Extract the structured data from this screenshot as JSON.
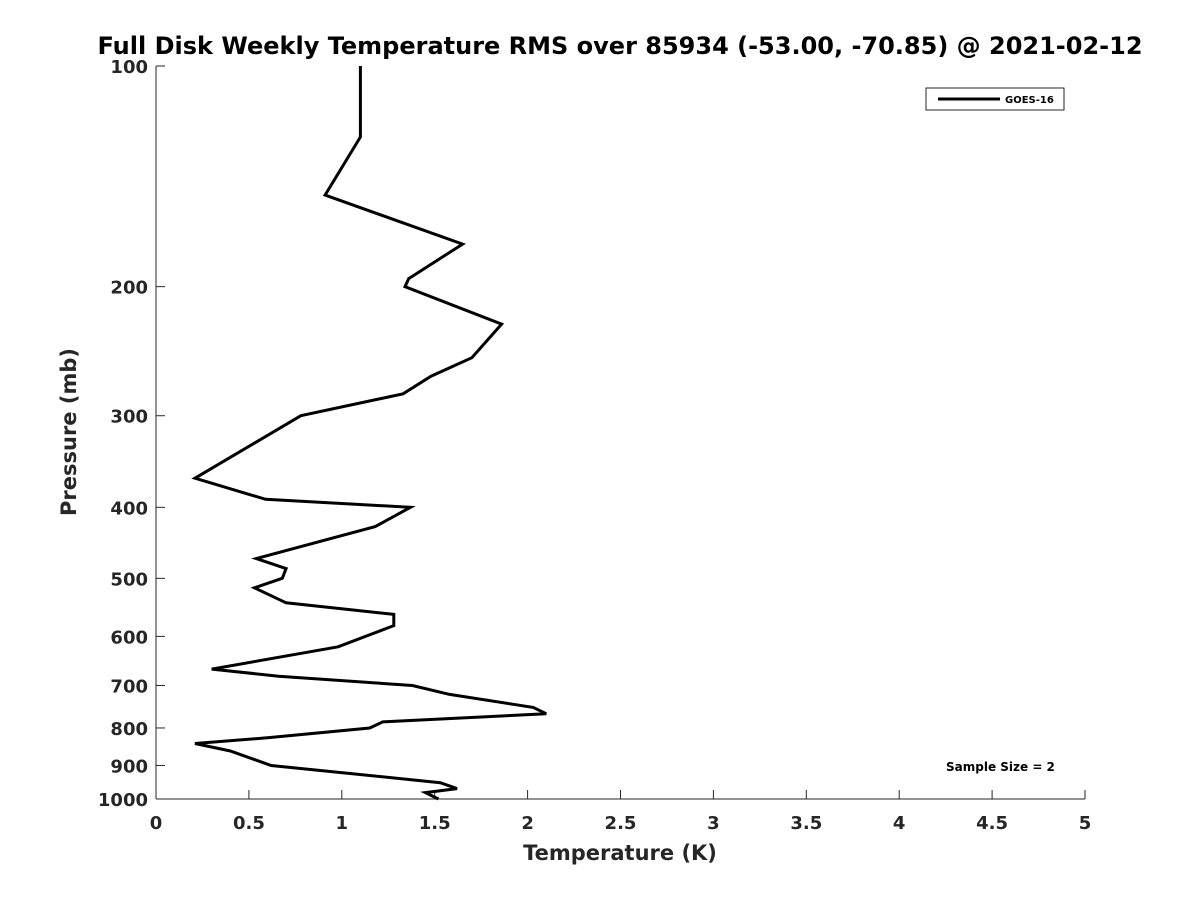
{
  "chart_data": {
    "type": "line",
    "title": "Full Disk Weekly Temperature RMS over 85934 (-53.00, -70.85) @ 2021-02-12",
    "xlabel": "Temperature (K)",
    "ylabel": "Pressure (mb)",
    "xlim": [
      0,
      5
    ],
    "ylim": [
      1000,
      100
    ],
    "y_scale": "log",
    "y_reversed": true,
    "grid": false,
    "x_ticks": [
      "0",
      "0.5",
      "1",
      "1.5",
      "2",
      "2.5",
      "3",
      "3.5",
      "4",
      "4.5",
      "5"
    ],
    "y_ticks": [
      "100",
      "200",
      "300",
      "400",
      "500",
      "600",
      "700",
      "800",
      "900",
      "1000"
    ],
    "legend_position": "top-right",
    "annotation": "Sample Size = 2",
    "series": [
      {
        "name": "GOES-16",
        "color": "#000000",
        "points": [
          [
            1.1,
            100
          ],
          [
            1.1,
            125
          ],
          [
            0.91,
            150
          ],
          [
            1.65,
            175
          ],
          [
            1.36,
            195
          ],
          [
            1.34,
            200
          ],
          [
            1.86,
            225
          ],
          [
            1.7,
            250
          ],
          [
            1.48,
            265
          ],
          [
            1.33,
            280
          ],
          [
            0.78,
            300
          ],
          [
            0.21,
            365
          ],
          [
            0.59,
            390
          ],
          [
            1.37,
            400
          ],
          [
            1.18,
            425
          ],
          [
            0.54,
            470
          ],
          [
            0.7,
            485
          ],
          [
            0.68,
            500
          ],
          [
            0.53,
            515
          ],
          [
            0.7,
            540
          ],
          [
            1.28,
            560
          ],
          [
            1.28,
            580
          ],
          [
            0.98,
            620
          ],
          [
            0.3,
            665
          ],
          [
            0.66,
            680
          ],
          [
            1.38,
            700
          ],
          [
            1.58,
            720
          ],
          [
            2.03,
            750
          ],
          [
            2.1,
            765
          ],
          [
            1.22,
            785
          ],
          [
            1.15,
            800
          ],
          [
            0.6,
            825
          ],
          [
            0.21,
            840
          ],
          [
            0.4,
            860
          ],
          [
            0.62,
            900
          ],
          [
            1.53,
            950
          ],
          [
            1.62,
            968
          ],
          [
            1.45,
            980
          ],
          [
            1.52,
            1000
          ]
        ]
      }
    ]
  }
}
